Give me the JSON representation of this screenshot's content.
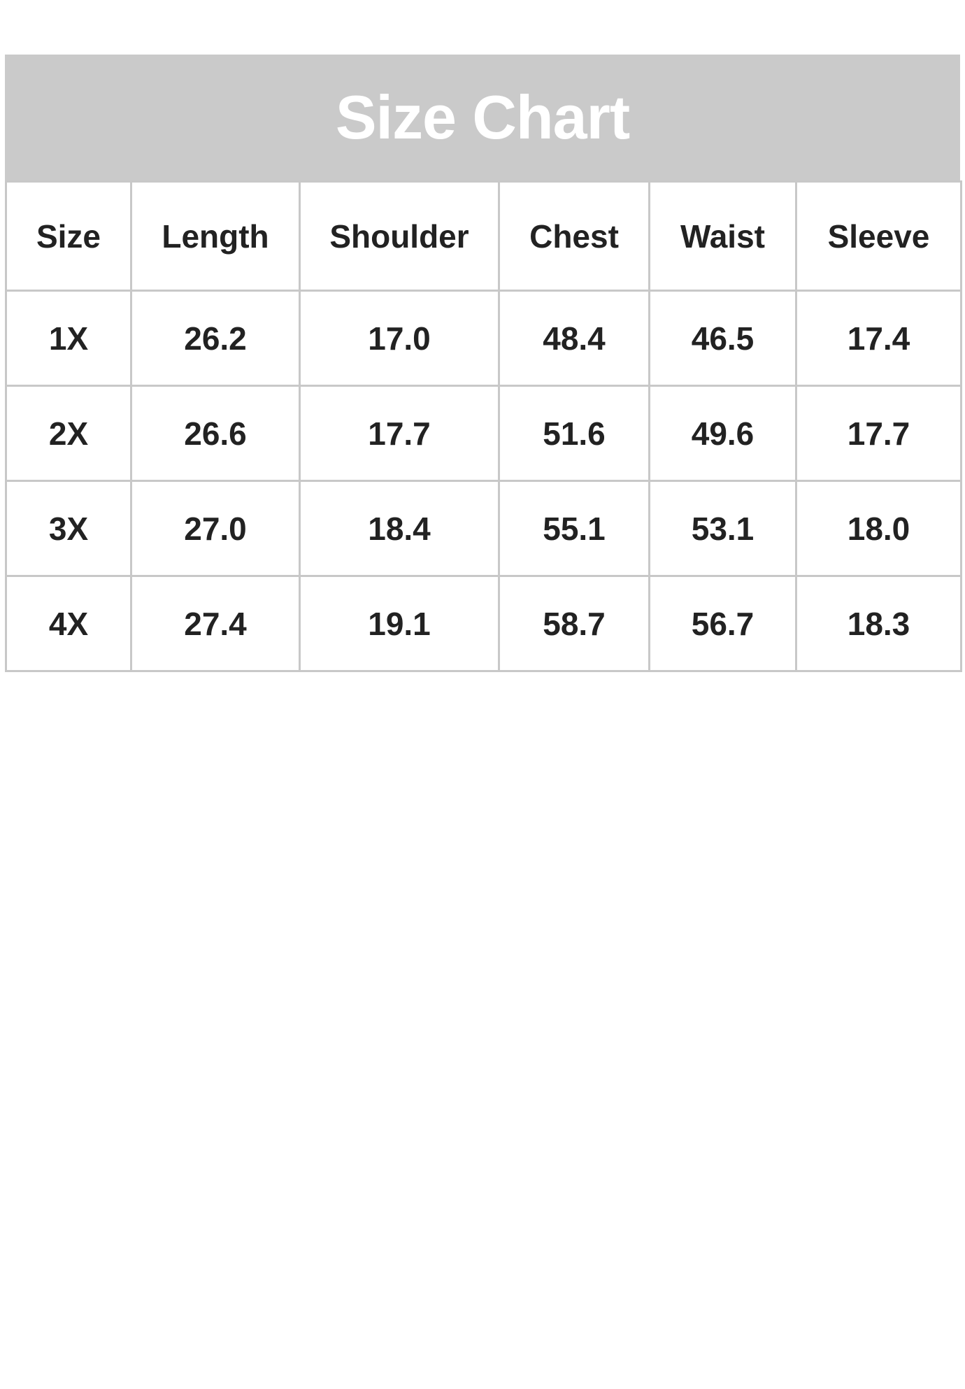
{
  "title": "Size Chart",
  "columns": [
    "Size",
    "Length",
    "Shoulder",
    "Chest",
    "Waist",
    "Sleeve"
  ],
  "rows": [
    [
      "1X",
      "26.2",
      "17.0",
      "48.4",
      "46.5",
      "17.4"
    ],
    [
      "2X",
      "26.6",
      "17.7",
      "51.6",
      "49.6",
      "17.7"
    ],
    [
      "3X",
      "27.0",
      "18.4",
      "55.1",
      "53.1",
      "18.0"
    ],
    [
      "4X",
      "27.4",
      "19.1",
      "58.7",
      "56.7",
      "18.3"
    ]
  ],
  "colors": {
    "header_bg": "#cacaca",
    "title_text": "#ffffff",
    "border": "#c8c8c8",
    "text": "#222222"
  }
}
